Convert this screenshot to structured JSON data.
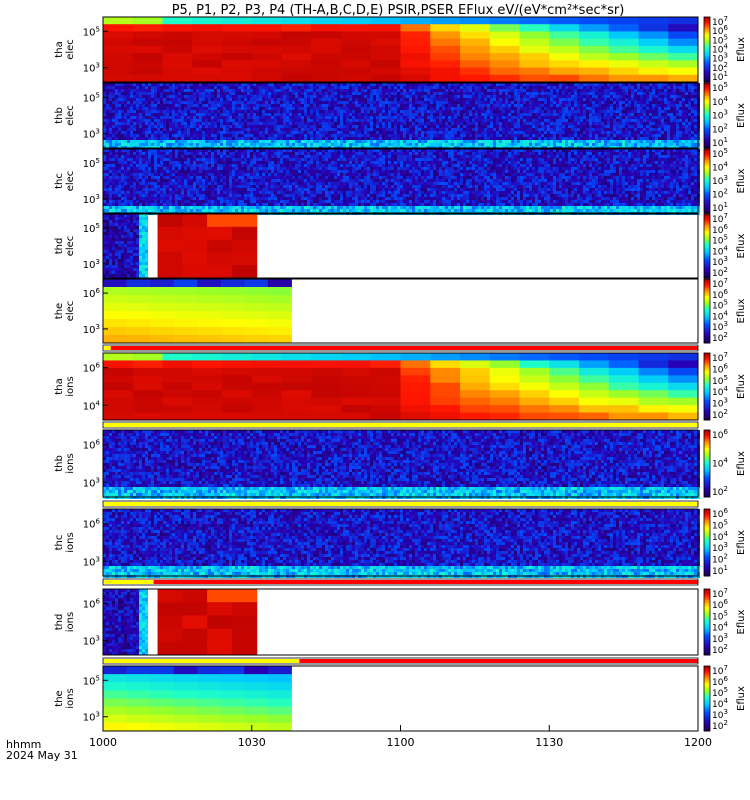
{
  "chart_data": {
    "type": "heatmap",
    "title": "P5, P1, P2, P3, P4 (TH-A,B,C,D,E) PSIR,PSER EFlux eV/(eV*cm²*sec*sr)",
    "x_ticks": [
      "1000",
      "1030",
      "1100",
      "1130",
      "1200"
    ],
    "x_range": [
      "10:00",
      "12:00"
    ],
    "x_footer_label": "hhmm",
    "date_label": "2024 May 31",
    "colorbar_label": "Eflux",
    "colors": {
      "high": "#c80000",
      "low": "#3a1a9a",
      "flag_red": "#ff0000",
      "flag_yellow": "#ffff00",
      "missing": "#ffffff"
    },
    "panels": [
      {
        "probe": "tha",
        "species": "elec",
        "ylabel": "tha elec",
        "yticks": [
          "10⁵",
          "10³"
        ],
        "cbar_ticks": [
          "10⁷",
          "10⁶",
          "10⁵",
          "10⁴",
          "10³",
          "10²",
          "10¹"
        ],
        "pattern": "hot-decay",
        "data_end_min": 120
      },
      {
        "probe": "thb",
        "species": "elec",
        "ylabel": "thb elec",
        "yticks": [
          "10⁵",
          "10³"
        ],
        "cbar_ticks": [
          "10⁵",
          "10⁴",
          "10³",
          "10²",
          "10¹"
        ],
        "pattern": "noise",
        "data_end_min": 120
      },
      {
        "probe": "thc",
        "species": "elec",
        "ylabel": "thc elec",
        "yticks": [
          "10⁵",
          "10³"
        ],
        "cbar_ticks": [
          "10⁵",
          "10⁴",
          "10³",
          "10²",
          "10¹"
        ],
        "pattern": "noise",
        "data_end_min": 120
      },
      {
        "probe": "thd",
        "species": "elec",
        "ylabel": "thd elec",
        "yticks": [
          "10⁵",
          "10³"
        ],
        "cbar_ticks": [
          "10⁷",
          "10⁶",
          "10⁵",
          "10⁴",
          "10³",
          "10²"
        ],
        "pattern": "partial-hot",
        "data_end_min": 31
      },
      {
        "probe": "the",
        "species": "elec",
        "ylabel": "the elec",
        "yticks": [
          "10⁶",
          "10³"
        ],
        "cbar_ticks": [
          "10⁷",
          "10⁶",
          "10⁵",
          "10⁴",
          "10³",
          "10²"
        ],
        "pattern": "partial-warm",
        "data_end_min": 38
      },
      {
        "probe": "tha",
        "species": "ions",
        "ylabel": "tha ions",
        "yticks": [
          "10⁶",
          "10⁴"
        ],
        "cbar_ticks": [
          "10⁷",
          "10⁶",
          "10⁵",
          "10⁴",
          "10³",
          "10²"
        ],
        "pattern": "hot-decay",
        "data_end_min": 120
      },
      {
        "probe": "thb",
        "species": "ions",
        "ylabel": "thb ions",
        "yticks": [
          "10⁶",
          "10³"
        ],
        "cbar_ticks": [
          "10⁶",
          "10⁴",
          "10²"
        ],
        "pattern": "noise",
        "data_end_min": 120
      },
      {
        "probe": "thc",
        "species": "ions",
        "ylabel": "thc ions",
        "yticks": [
          "10⁶",
          "10³"
        ],
        "cbar_ticks": [
          "10⁶",
          "10⁵",
          "10⁴",
          "10³",
          "10²",
          "10¹"
        ],
        "pattern": "noise",
        "data_end_min": 120
      },
      {
        "probe": "thd",
        "species": "ions",
        "ylabel": "thd ions",
        "yticks": [
          "10⁶",
          "10³"
        ],
        "cbar_ticks": [
          "10⁷",
          "10⁶",
          "10⁵",
          "10⁴",
          "10³",
          "10²"
        ],
        "pattern": "partial-hot",
        "data_end_min": 31
      },
      {
        "probe": "the",
        "species": "ions",
        "ylabel": "the ions",
        "yticks": [
          "10⁵",
          "10³"
        ],
        "cbar_ticks": [
          "10⁷",
          "10⁶",
          "10⁵",
          "10⁴",
          "10³",
          "10²"
        ],
        "pattern": "partial-cool",
        "data_end_min": 38
      }
    ]
  }
}
